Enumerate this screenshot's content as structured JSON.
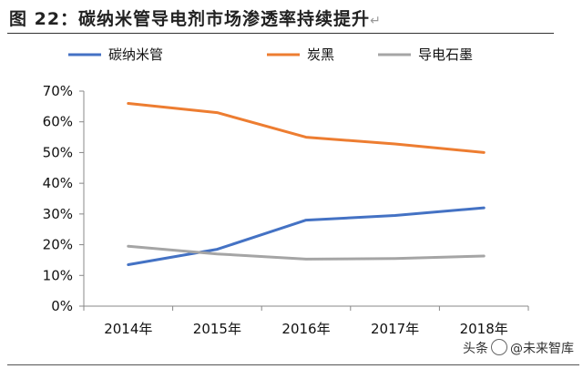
{
  "figure": {
    "title": "图 22：碳纳米管导电剂市场渗透率持续提升",
    "title_mark": "↵"
  },
  "source": {
    "prefix": "头条",
    "name": "@未来智库"
  },
  "chart_data": {
    "type": "line",
    "title": "",
    "xlabel": "",
    "ylabel": "",
    "categories": [
      "2014年",
      "2015年",
      "2016年",
      "2017年",
      "2018年"
    ],
    "ylim": [
      0,
      70
    ],
    "yticks": [
      "0%",
      "10%",
      "20%",
      "30%",
      "40%",
      "50%",
      "60%",
      "70%"
    ],
    "grid": false,
    "legend_position": "top",
    "series": [
      {
        "name": "碳纳米管",
        "color": "#4472c4",
        "values": [
          13.5,
          18.5,
          28,
          29.5,
          32
        ]
      },
      {
        "name": "炭黑",
        "color": "#ed7d31",
        "values": [
          66,
          63,
          55,
          52.8,
          50
        ]
      },
      {
        "name": "导电石墨",
        "color": "#a5a5a5",
        "values": [
          19.5,
          17,
          15.3,
          15.5,
          16.3
        ]
      }
    ]
  }
}
